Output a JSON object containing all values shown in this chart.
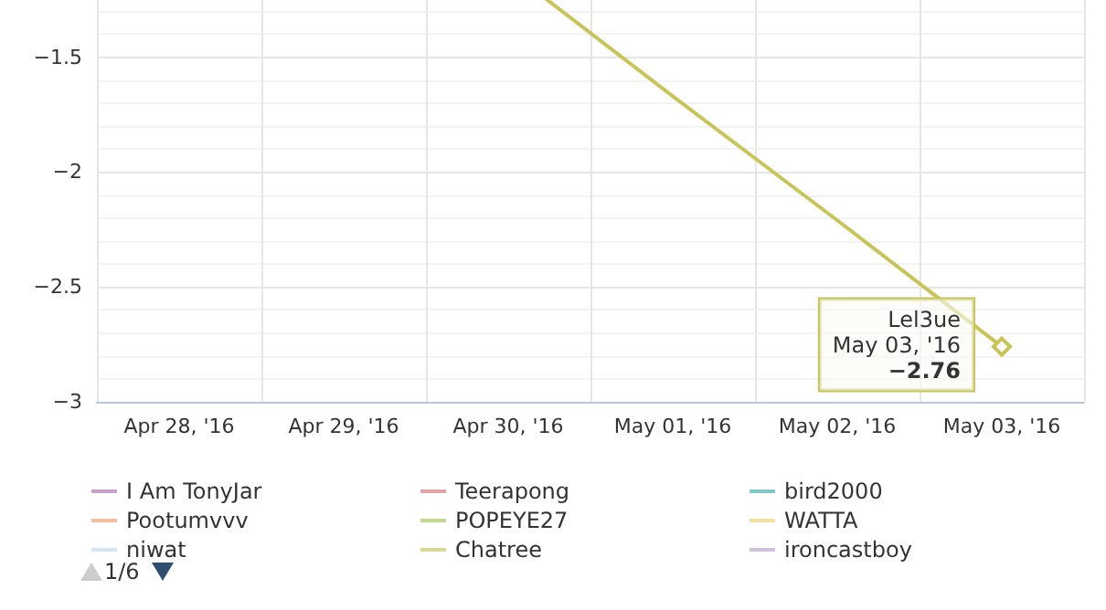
{
  "chart_data": {
    "type": "line",
    "categories": [
      "Apr 28, '16",
      "Apr 29, '16",
      "Apr 30, '16",
      "May 01, '16",
      "May 02, '16",
      "May 03, '16"
    ],
    "series": [
      {
        "name": "I Am TonyJar",
        "color": "#c9a0c9",
        "values": [
          null,
          null,
          null,
          null,
          null,
          null
        ]
      },
      {
        "name": "Pootumvvv",
        "color": "#f5c0a0",
        "values": [
          null,
          null,
          null,
          null,
          null,
          null
        ]
      },
      {
        "name": "niwat",
        "color": "#d5e5f5",
        "values": [
          null,
          null,
          null,
          null,
          null,
          null
        ]
      },
      {
        "name": "Teerapong",
        "color": "#e8a0a8",
        "values": [
          null,
          null,
          null,
          null,
          null,
          null
        ]
      },
      {
        "name": "POPEYE27",
        "color": "#c0d890",
        "values": [
          null,
          null,
          null,
          null,
          null,
          null
        ]
      },
      {
        "name": "Chatree",
        "color": "#d8d890",
        "values": [
          null,
          null,
          null,
          null,
          null,
          null
        ]
      },
      {
        "name": "bird2000",
        "color": "#80c8c8",
        "values": [
          null,
          null,
          null,
          null,
          null,
          null
        ]
      },
      {
        "name": "WATTA",
        "color": "#f5e0a0",
        "values": [
          null,
          null,
          null,
          null,
          null,
          null
        ]
      },
      {
        "name": "ironcastboy",
        "color": "#d0c0e0",
        "values": [
          null,
          null,
          null,
          null,
          null,
          null
        ]
      },
      {
        "name": "Lel3ue",
        "color": "#c8c35a",
        "values": [
          null,
          null,
          -1.12,
          -1.67,
          -2.21,
          -2.76
        ],
        "value_labels": [
          null,
          null,
          null,
          null,
          null,
          "−2.76"
        ]
      }
    ],
    "ylim": [
      -3,
      -1.1
    ],
    "yticks": [
      -3,
      -2.5,
      -2,
      -1.5
    ],
    "grid": true,
    "legend": "bottom",
    "marker": "none",
    "annotations": [
      "1/6"
    ]
  }
}
